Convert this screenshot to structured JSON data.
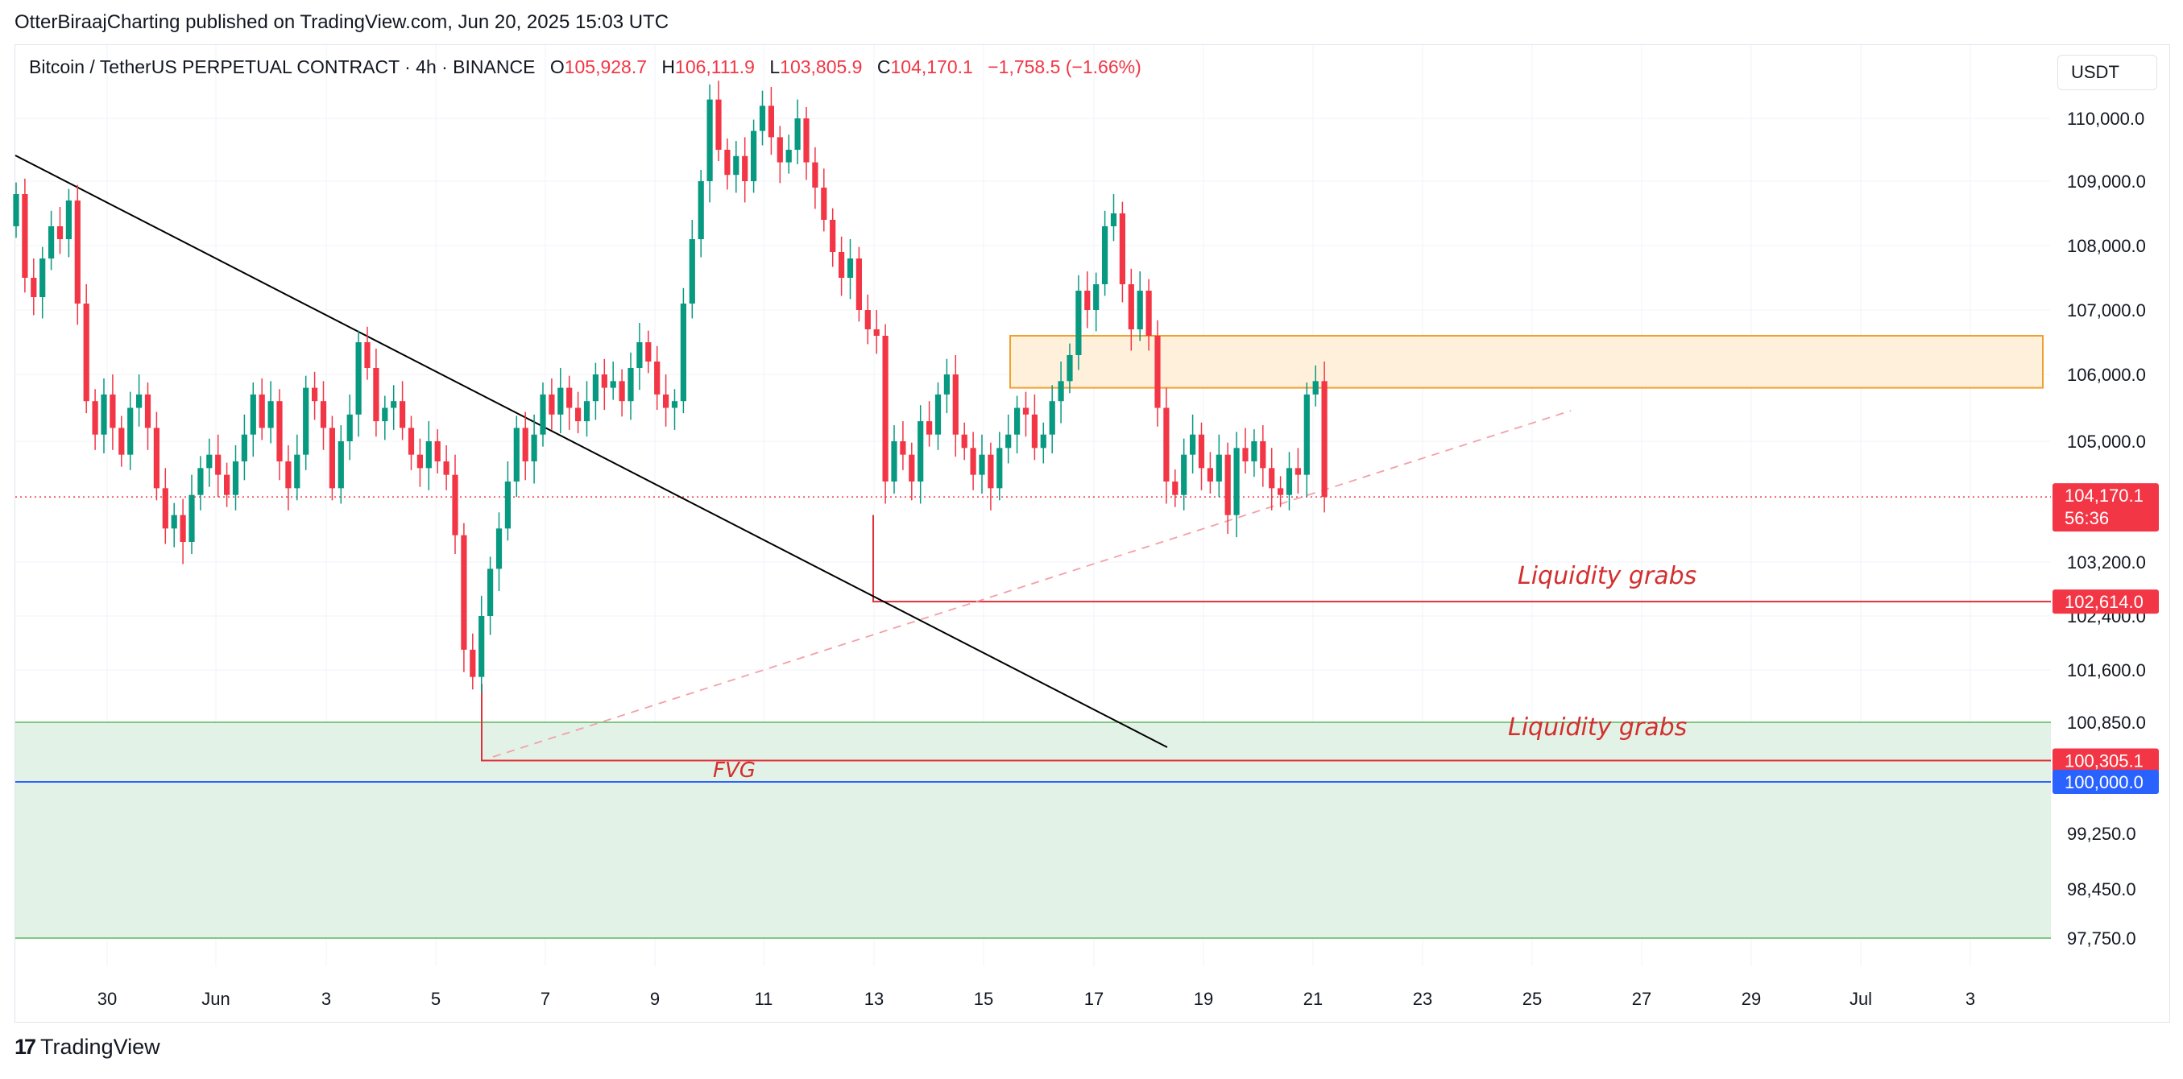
{
  "header": {
    "published": "OtterBiraajCharting published on TradingView.com, Jun 20, 2025 15:03 UTC",
    "symbol": "Bitcoin / TetherUS PERPETUAL CONTRACT · 4h · BINANCE",
    "o_key": "O",
    "o_val": "105,928.7",
    "h_key": "H",
    "h_val": "106,111.9",
    "l_key": "L",
    "l_val": "103,805.9",
    "c_key": "C",
    "c_val": "104,170.1",
    "change": "−1,758.5 (−1.66%)",
    "currency": "USDT"
  },
  "footer": {
    "brand": "TradingView",
    "logo": "17"
  },
  "colors": {
    "up": "#089981",
    "down": "#f23645",
    "bg": "#ffffff",
    "grid": "#f0f3fa",
    "zone_fill": "#e3f2e6",
    "supply_fill": "#fff0dc",
    "supply_border": "#f0a030",
    "blue_line": "#2962ff",
    "red_line": "#e0303a",
    "annotation": "#d32f2f"
  },
  "chart_data": {
    "type": "candlestick",
    "symbol": "BTCUSDT.P",
    "interval": "4h",
    "x_ticks": [
      "30",
      "Jun",
      "3",
      "5",
      "7",
      "9",
      "11",
      "13",
      "15",
      "17",
      "19",
      "21",
      "23",
      "25",
      "27",
      "29",
      "Jul",
      "3"
    ],
    "y_ticks": [
      "110,000.0",
      "109,000.0",
      "108,000.0",
      "107,000.0",
      "106,000.0",
      "105,000.0",
      "103,200.0",
      "102,400.0",
      "101,600.0",
      "100,850.0",
      "99,250.0",
      "98,450.0",
      "97,750.0"
    ],
    "price_labels": [
      {
        "text": "104,170.1",
        "sub": "56:36",
        "color": "#f23645"
      },
      {
        "text": "102,614.0",
        "color": "#f23645"
      },
      {
        "text": "100,305.1",
        "color": "#f23645"
      },
      {
        "text": "100,000.0",
        "color": "#2962ff"
      }
    ],
    "annotations": [
      "Liquidity grabs",
      "Liquidity grabs",
      "FVG"
    ],
    "candles_close_path": [
      [
        0,
        108800
      ],
      [
        1,
        107500
      ],
      [
        2,
        107200
      ],
      [
        3,
        107800
      ],
      [
        4,
        108300
      ],
      [
        5,
        108100
      ],
      [
        6,
        108700
      ],
      [
        7,
        107100
      ],
      [
        8,
        105600
      ],
      [
        9,
        105100
      ],
      [
        10,
        105700
      ],
      [
        11,
        105200
      ],
      [
        12,
        104800
      ],
      [
        13,
        105500
      ],
      [
        14,
        105700
      ],
      [
        15,
        105200
      ],
      [
        16,
        104300
      ],
      [
        17,
        103700
      ],
      [
        18,
        103900
      ],
      [
        19,
        103500
      ],
      [
        20,
        104200
      ],
      [
        21,
        104600
      ],
      [
        22,
        104800
      ],
      [
        23,
        104500
      ],
      [
        24,
        104200
      ],
      [
        25,
        104700
      ],
      [
        26,
        105100
      ],
      [
        27,
        105700
      ],
      [
        28,
        105200
      ],
      [
        29,
        105600
      ],
      [
        30,
        104700
      ],
      [
        31,
        104300
      ],
      [
        32,
        104800
      ],
      [
        33,
        105800
      ],
      [
        34,
        105600
      ],
      [
        35,
        105200
      ],
      [
        36,
        104300
      ],
      [
        37,
        105000
      ],
      [
        38,
        105400
      ],
      [
        39,
        106500
      ],
      [
        40,
        106100
      ],
      [
        41,
        105300
      ],
      [
        42,
        105500
      ],
      [
        43,
        105600
      ],
      [
        44,
        105200
      ],
      [
        45,
        104800
      ],
      [
        46,
        104600
      ],
      [
        47,
        105000
      ],
      [
        48,
        104700
      ],
      [
        49,
        104500
      ],
      [
        50,
        103600
      ],
      [
        51,
        101900
      ],
      [
        52,
        101500
      ],
      [
        53,
        102400
      ],
      [
        54,
        103100
      ],
      [
        55,
        103700
      ],
      [
        56,
        104400
      ],
      [
        57,
        105200
      ],
      [
        58,
        104700
      ],
      [
        59,
        105100
      ],
      [
        60,
        105700
      ],
      [
        61,
        105400
      ],
      [
        62,
        105800
      ],
      [
        63,
        105500
      ],
      [
        64,
        105300
      ],
      [
        65,
        105600
      ],
      [
        66,
        106000
      ],
      [
        67,
        105800
      ],
      [
        68,
        105900
      ],
      [
        69,
        105600
      ],
      [
        70,
        106100
      ],
      [
        71,
        106500
      ],
      [
        72,
        106200
      ],
      [
        73,
        105700
      ],
      [
        74,
        105500
      ],
      [
        75,
        105600
      ],
      [
        76,
        107100
      ],
      [
        77,
        108100
      ],
      [
        78,
        109000
      ],
      [
        79,
        110300
      ],
      [
        80,
        109500
      ],
      [
        81,
        109100
      ],
      [
        82,
        109400
      ],
      [
        83,
        109000
      ],
      [
        84,
        109800
      ],
      [
        85,
        110200
      ],
      [
        86,
        109700
      ],
      [
        87,
        109300
      ],
      [
        88,
        109500
      ],
      [
        89,
        110000
      ],
      [
        90,
        109300
      ],
      [
        91,
        108900
      ],
      [
        92,
        108400
      ],
      [
        93,
        107900
      ],
      [
        94,
        107500
      ],
      [
        95,
        107800
      ],
      [
        96,
        107000
      ],
      [
        97,
        106700
      ],
      [
        98,
        106600
      ],
      [
        99,
        104400
      ],
      [
        100,
        105000
      ],
      [
        101,
        104800
      ],
      [
        102,
        104400
      ],
      [
        103,
        105300
      ],
      [
        104,
        105100
      ],
      [
        105,
        105700
      ],
      [
        106,
        106000
      ],
      [
        107,
        105100
      ],
      [
        108,
        104900
      ],
      [
        109,
        104500
      ],
      [
        110,
        104800
      ],
      [
        111,
        104300
      ],
      [
        112,
        104900
      ],
      [
        113,
        105100
      ],
      [
        114,
        105500
      ],
      [
        115,
        105400
      ],
      [
        116,
        104900
      ],
      [
        117,
        105100
      ],
      [
        118,
        105600
      ],
      [
        119,
        105900
      ],
      [
        120,
        106300
      ],
      [
        121,
        107300
      ],
      [
        122,
        107000
      ],
      [
        123,
        107400
      ],
      [
        124,
        108300
      ],
      [
        125,
        108500
      ],
      [
        126,
        107400
      ],
      [
        127,
        106700
      ],
      [
        128,
        107300
      ],
      [
        129,
        106600
      ],
      [
        130,
        105500
      ],
      [
        131,
        104400
      ],
      [
        132,
        104200
      ],
      [
        133,
        104800
      ],
      [
        134,
        105100
      ],
      [
        135,
        104600
      ],
      [
        136,
        104400
      ],
      [
        137,
        104800
      ],
      [
        138,
        103900
      ],
      [
        139,
        104900
      ],
      [
        140,
        104700
      ],
      [
        141,
        105000
      ],
      [
        142,
        104600
      ],
      [
        143,
        104300
      ],
      [
        144,
        104200
      ],
      [
        145,
        104600
      ],
      [
        146,
        104500
      ],
      [
        147,
        105700
      ],
      [
        148,
        105900
      ],
      [
        149,
        104170
      ]
    ],
    "levels": {
      "current": 104170.1,
      "liquidity_grab_1": 102614.0,
      "liquidity_grab_2": 100305.1,
      "round": 100000.0,
      "fvg_zone": [
        97750,
        100850
      ],
      "supply_zone": [
        105800,
        106600
      ]
    }
  }
}
